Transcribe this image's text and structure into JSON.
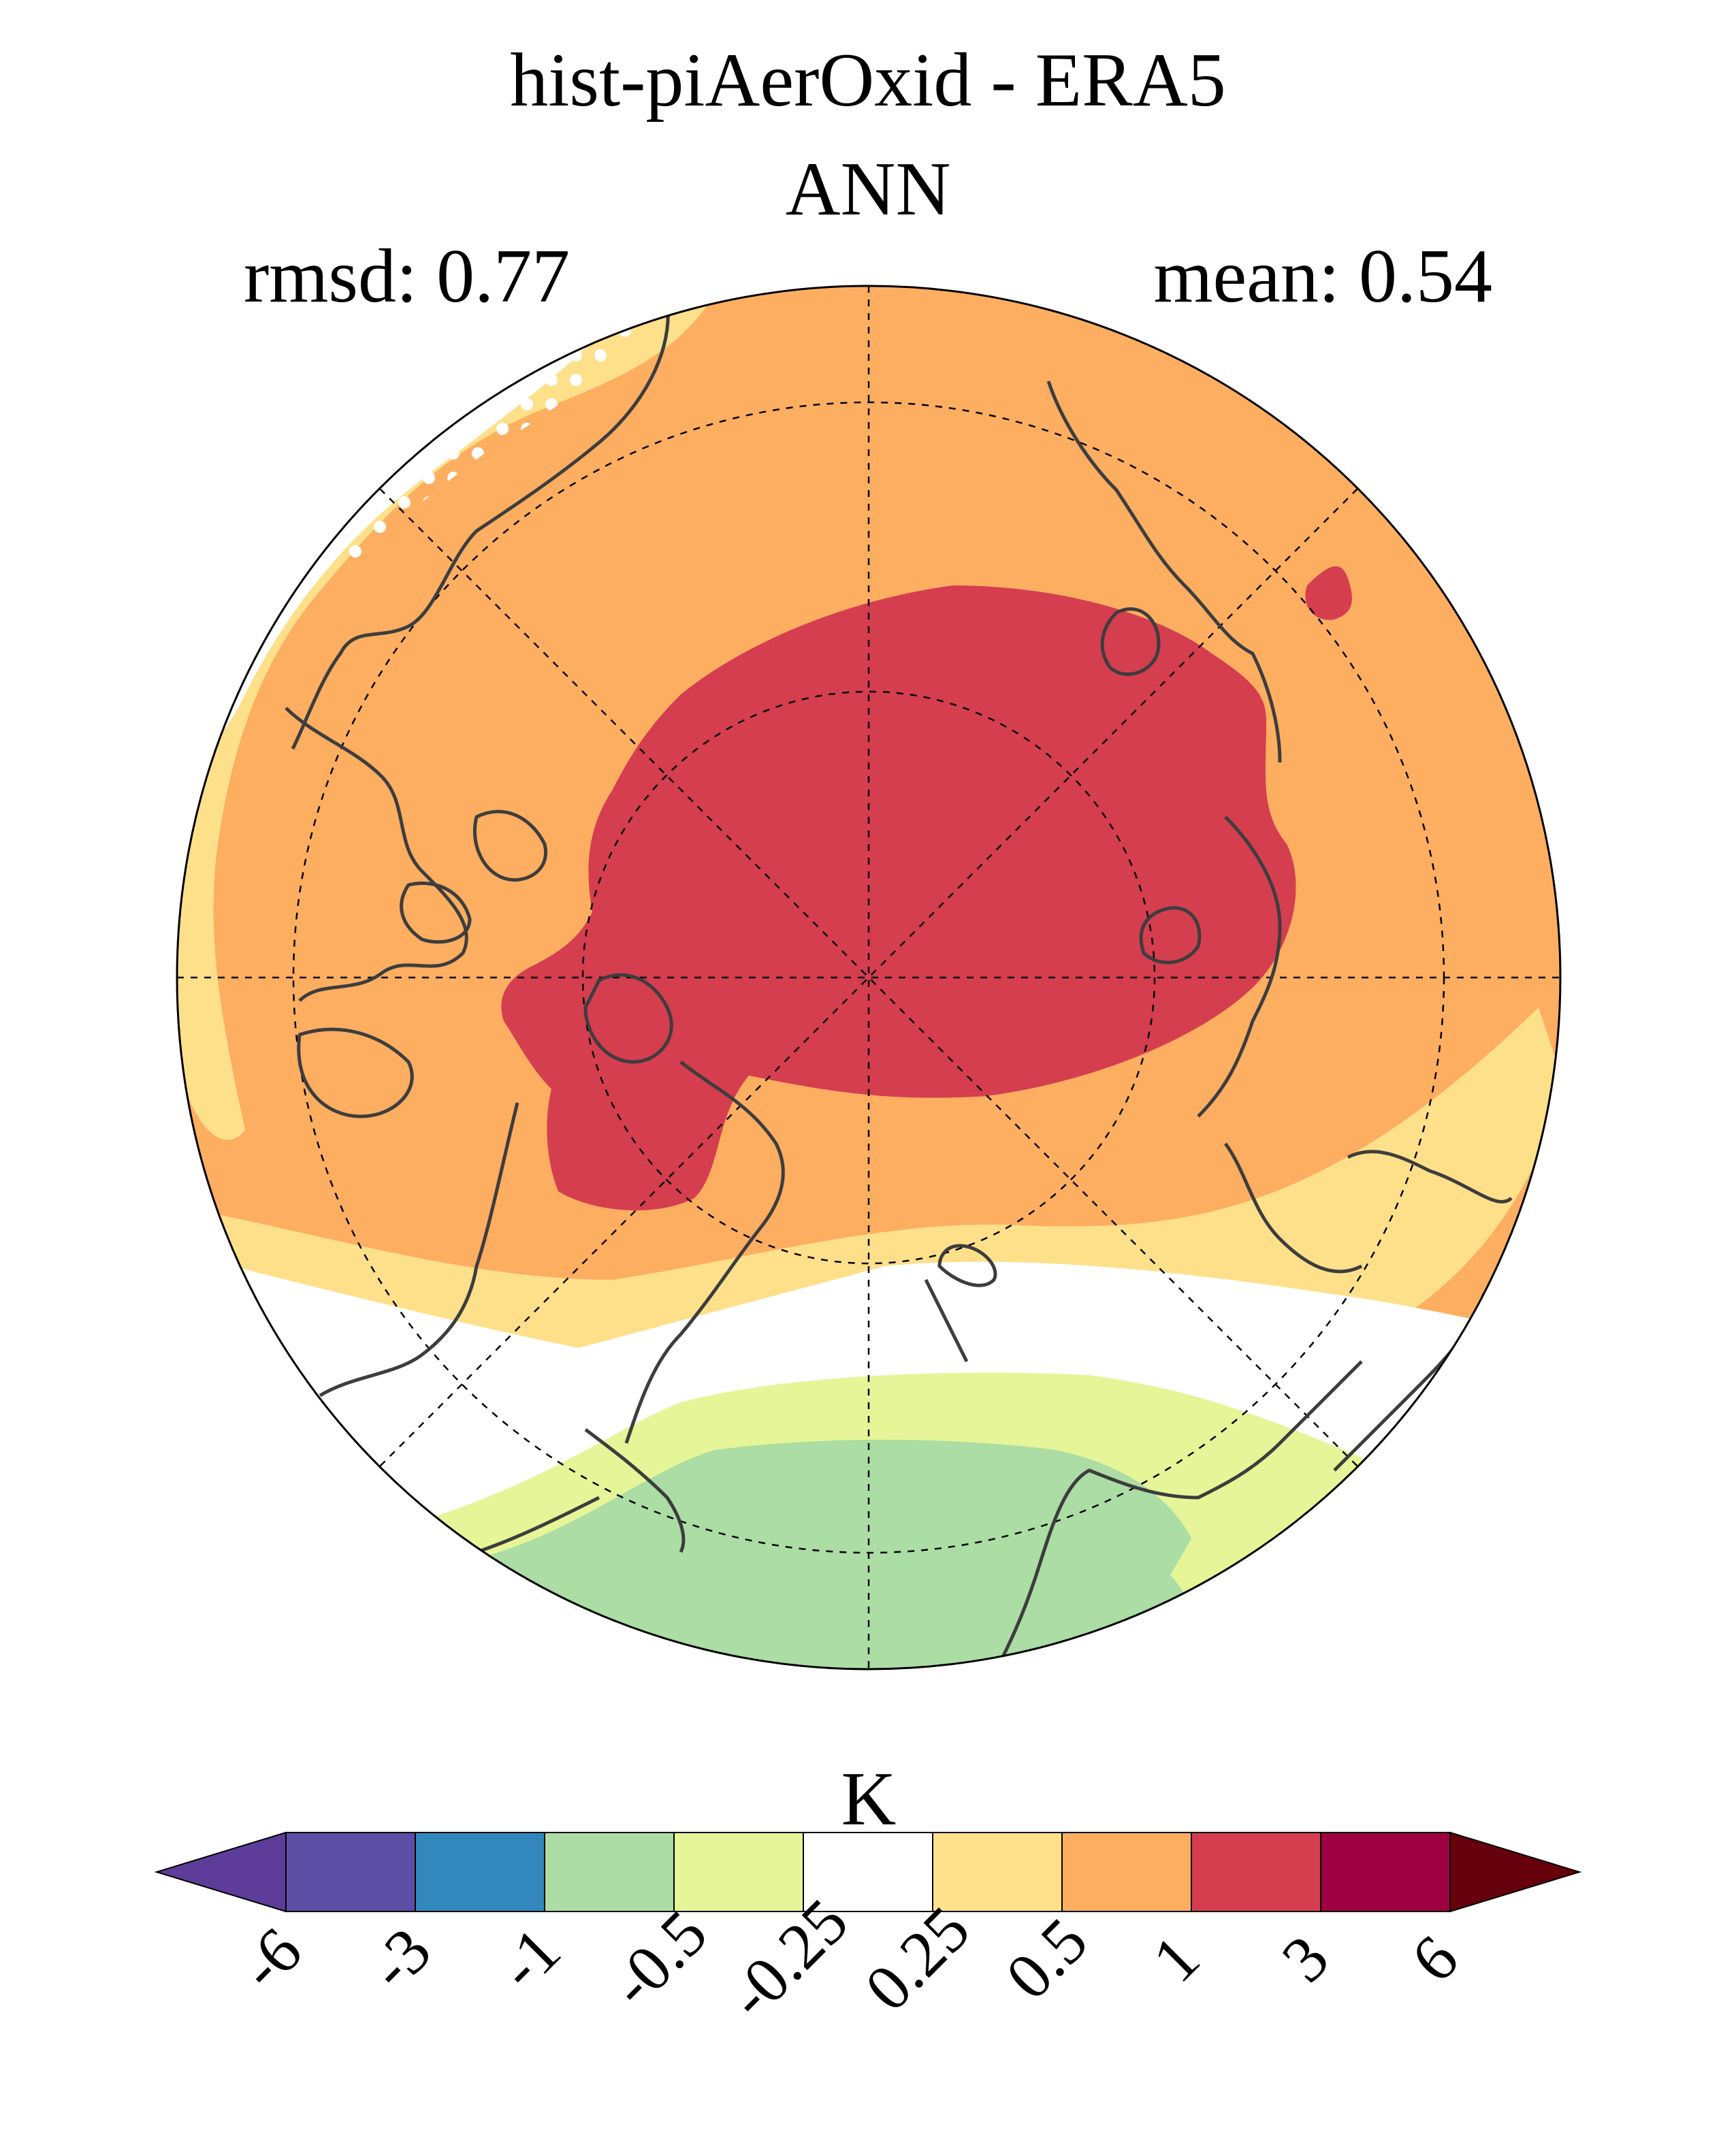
{
  "title": "hist-piAerOxid - ERA5",
  "season": "ANN",
  "stats": {
    "rmsd": "rmsd: 0.77",
    "mean": "mean: 0.54"
  },
  "colorbar": {
    "unit": "K",
    "levels": [
      "-6",
      "-3",
      "-1",
      "-0.5",
      "-0.25",
      "0.25",
      "0.5",
      "1",
      "3",
      "6"
    ],
    "colors": [
      "#5e3c99",
      "#5c4ea5",
      "#3288bd",
      "#abdda4",
      "#e6f598",
      "#ffffff",
      "#fee08b",
      "#fdae61",
      "#d53e4f",
      "#9e0142",
      "#67000d"
    ]
  },
  "map": {
    "projection": "north polar stereographic",
    "graticule": "dashed",
    "coastlines": "dark gray",
    "stippling": "white dots in regions of low significance"
  }
}
